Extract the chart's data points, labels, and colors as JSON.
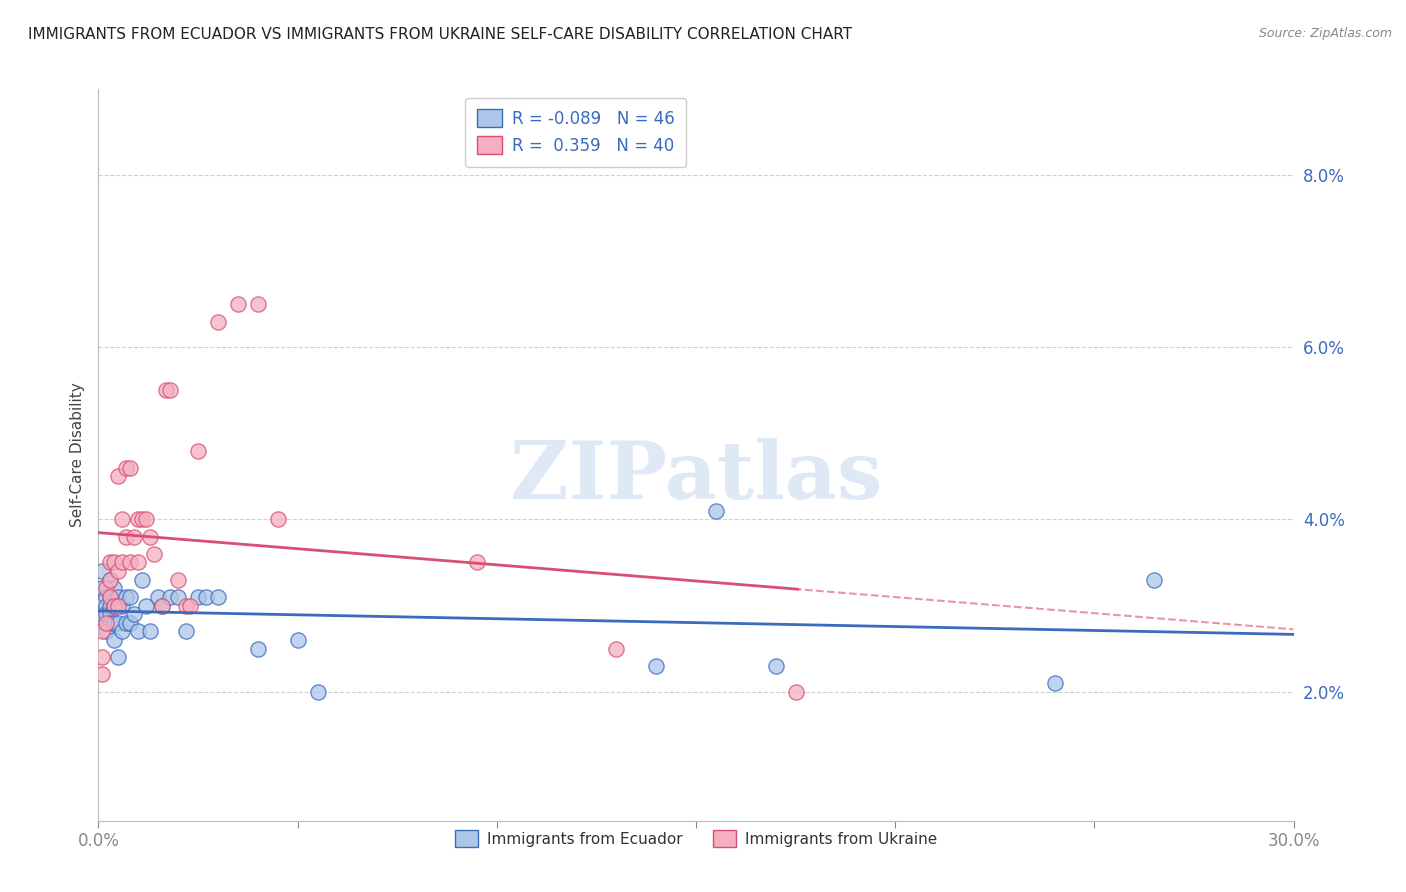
{
  "title": "IMMIGRANTS FROM ECUADOR VS IMMIGRANTS FROM UKRAINE SELF-CARE DISABILITY CORRELATION CHART",
  "source": "Source: ZipAtlas.com",
  "ylabel": "Self-Care Disability",
  "xlim": [
    0.0,
    0.3
  ],
  "ylim": [
    0.005,
    0.09
  ],
  "xtick_positions": [
    0.0,
    0.05,
    0.1,
    0.15,
    0.2,
    0.25,
    0.3
  ],
  "xticklabels": [
    "0.0%",
    "",
    "",
    "",
    "",
    "",
    "30.0%"
  ],
  "ytick_positions": [
    0.02,
    0.04,
    0.06,
    0.08
  ],
  "yticklabels": [
    "2.0%",
    "4.0%",
    "6.0%",
    "8.0%"
  ],
  "ecuador_color": "#adc6e8",
  "ukraine_color": "#f5afc0",
  "ecuador_R": -0.089,
  "ecuador_N": 46,
  "ukraine_R": 0.359,
  "ukraine_N": 40,
  "ecuador_line_color": "#3b6bbf",
  "ukraine_line_color": "#d94f72",
  "grid_color": "#d0d0d0",
  "title_color": "#222222",
  "axis_label_color": "#3b6bbf",
  "watermark": "ZIPatlas",
  "ecuador_x": [
    0.001,
    0.001,
    0.001,
    0.002,
    0.002,
    0.002,
    0.002,
    0.003,
    0.003,
    0.003,
    0.003,
    0.003,
    0.004,
    0.004,
    0.004,
    0.004,
    0.005,
    0.005,
    0.005,
    0.006,
    0.006,
    0.007,
    0.007,
    0.008,
    0.008,
    0.009,
    0.01,
    0.011,
    0.012,
    0.013,
    0.015,
    0.016,
    0.018,
    0.02,
    0.022,
    0.025,
    0.027,
    0.03,
    0.04,
    0.05,
    0.055,
    0.14,
    0.155,
    0.17,
    0.24,
    0.265
  ],
  "ecuador_y": [
    0.032,
    0.034,
    0.029,
    0.031,
    0.03,
    0.029,
    0.027,
    0.033,
    0.031,
    0.03,
    0.029,
    0.028,
    0.032,
    0.03,
    0.028,
    0.026,
    0.031,
    0.028,
    0.024,
    0.03,
    0.027,
    0.031,
    0.028,
    0.031,
    0.028,
    0.029,
    0.027,
    0.033,
    0.03,
    0.027,
    0.031,
    0.03,
    0.031,
    0.031,
    0.027,
    0.031,
    0.031,
    0.031,
    0.025,
    0.026,
    0.02,
    0.023,
    0.041,
    0.023,
    0.021,
    0.033
  ],
  "ukraine_x": [
    0.001,
    0.001,
    0.001,
    0.002,
    0.002,
    0.003,
    0.003,
    0.003,
    0.004,
    0.004,
    0.005,
    0.005,
    0.005,
    0.006,
    0.006,
    0.007,
    0.007,
    0.008,
    0.008,
    0.009,
    0.01,
    0.01,
    0.011,
    0.012,
    0.013,
    0.014,
    0.016,
    0.017,
    0.018,
    0.02,
    0.022,
    0.023,
    0.025,
    0.03,
    0.035,
    0.04,
    0.045,
    0.095,
    0.13,
    0.175
  ],
  "ukraine_y": [
    0.024,
    0.027,
    0.022,
    0.032,
    0.028,
    0.033,
    0.031,
    0.035,
    0.035,
    0.03,
    0.034,
    0.03,
    0.045,
    0.035,
    0.04,
    0.038,
    0.046,
    0.035,
    0.046,
    0.038,
    0.04,
    0.035,
    0.04,
    0.04,
    0.038,
    0.036,
    0.03,
    0.055,
    0.055,
    0.033,
    0.03,
    0.03,
    0.048,
    0.063,
    0.065,
    0.065,
    0.04,
    0.035,
    0.025,
    0.02
  ]
}
